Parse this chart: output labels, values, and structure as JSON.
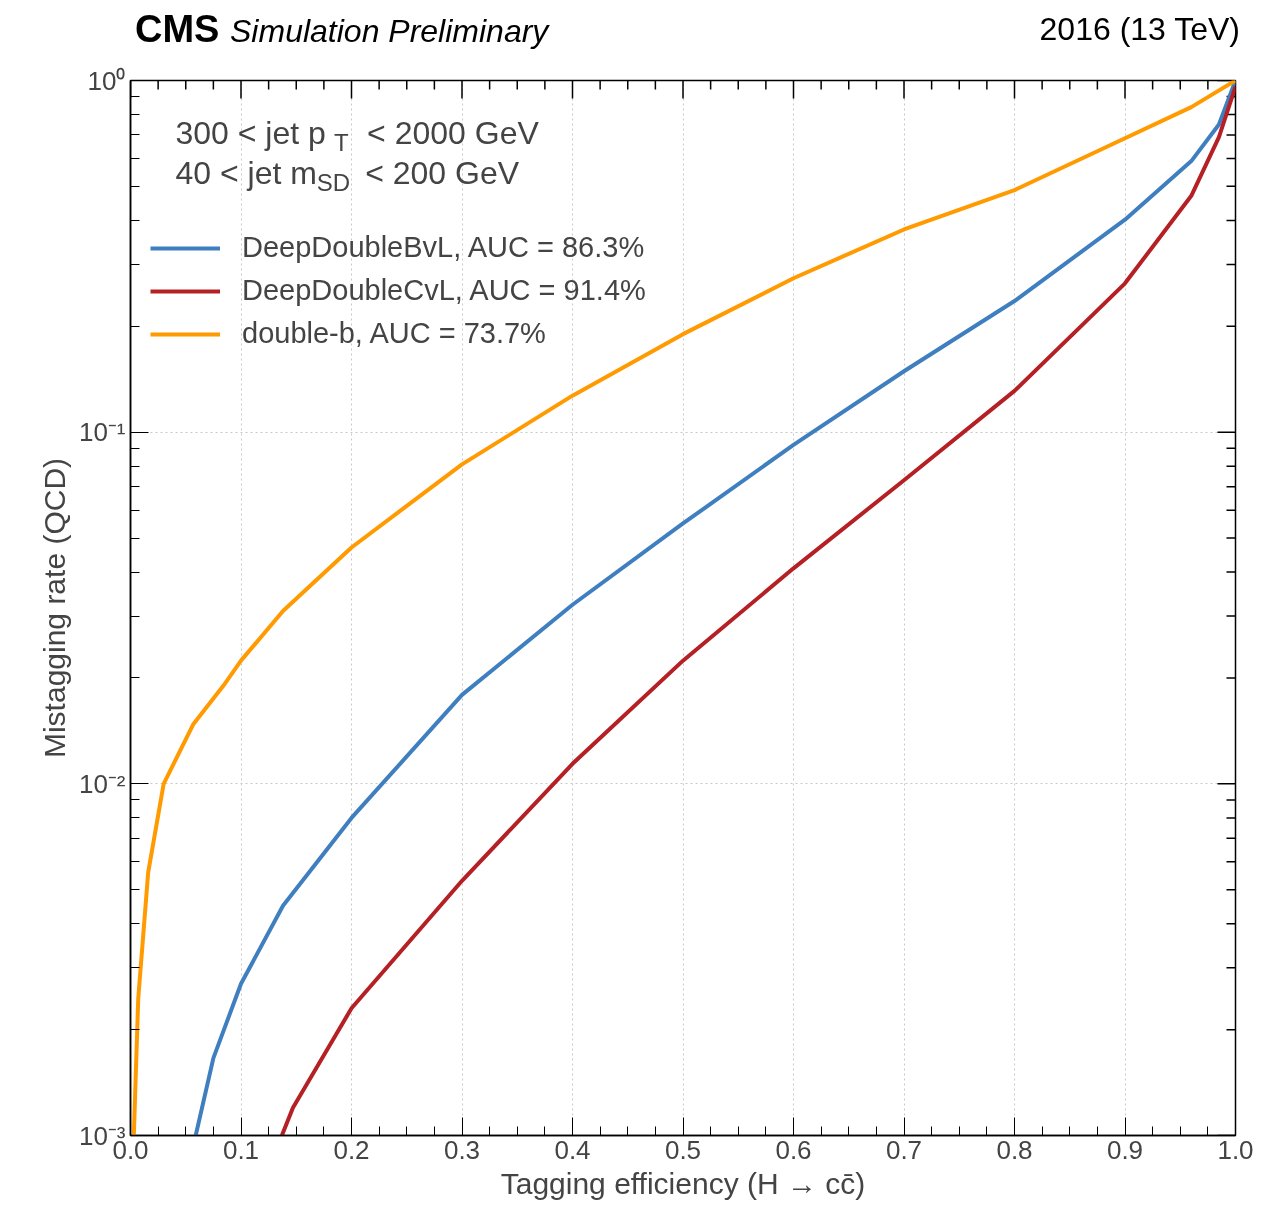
{
  "chart_data": {
    "type": "line",
    "xlabel": "Tagging efficiency (H → cc̄)",
    "ylabel": "Mistagging rate (QCD)",
    "annotations": [
      "CMS",
      "Simulation Preliminary",
      "2016 (13 TeV)",
      "300 <  jet p$_{T}$  < 2000 GeV",
      "40 <  jet m$_{SD}$  < 200 GeV"
    ],
    "series": [
      {
        "name": "DeepDoubleBvL, AUC = 86.3%",
        "color": "#3f7fbf",
        "x": [
          0.059,
          0.075,
          0.1,
          0.138,
          0.2,
          0.3,
          0.4,
          0.5,
          0.6,
          0.7,
          0.8,
          0.9,
          0.96,
          0.985,
          1.0
        ],
        "values": [
          0.001,
          0.00166,
          0.0027,
          0.0045,
          0.008,
          0.0179,
          0.0323,
          0.055,
          0.092,
          0.149,
          0.236,
          0.402,
          0.59,
          0.75,
          1.0
        ]
      },
      {
        "name": "DeepDoubleCvL, AUC = 91.4%",
        "color": "#b52025",
        "x": [
          0.137,
          0.147,
          0.2,
          0.3,
          0.4,
          0.5,
          0.6,
          0.7,
          0.8,
          0.9,
          0.96,
          0.985,
          1.0
        ],
        "values": [
          0.001,
          0.0012,
          0.0023,
          0.0053,
          0.0114,
          0.0224,
          0.041,
          0.073,
          0.131,
          0.265,
          0.47,
          0.69,
          0.96
        ]
      },
      {
        "name": "double-b, AUC = 73.7%",
        "color": "#ff9a00",
        "x": [
          0.003,
          0.007,
          0.016,
          0.03,
          0.057,
          0.084,
          0.1,
          0.138,
          0.2,
          0.3,
          0.4,
          0.5,
          0.6,
          0.7,
          0.8,
          0.9,
          0.96,
          1.0
        ],
        "values": [
          0.001,
          0.00245,
          0.0056,
          0.01,
          0.0148,
          0.019,
          0.0224,
          0.031,
          0.047,
          0.081,
          0.127,
          0.19,
          0.274,
          0.377,
          0.488,
          0.685,
          0.84,
          1.0
        ]
      }
    ],
    "xlim": [
      0,
      1
    ],
    "ylim": [
      0.001,
      1
    ],
    "log": true,
    "xticks": [
      {
        "value": 0,
        "label": "0.0"
      },
      0.1,
      0.2,
      0.3,
      0.4,
      0.5,
      0.6,
      0.7,
      0.8,
      0.9,
      {
        "value": 1,
        "label": "1.0"
      }
    ],
    "yticks": [
      {
        "value": 0.001,
        "label": "10⁻³"
      },
      {
        "value": 0.01,
        "label": "10⁻²"
      },
      {
        "value": 0.1,
        "label": "10⁻¹"
      },
      {
        "value": 1,
        "label": "10⁰"
      }
    ],
    "grid": true,
    "legend": "top left",
    "line_style": "solid",
    "marker": "none"
  }
}
